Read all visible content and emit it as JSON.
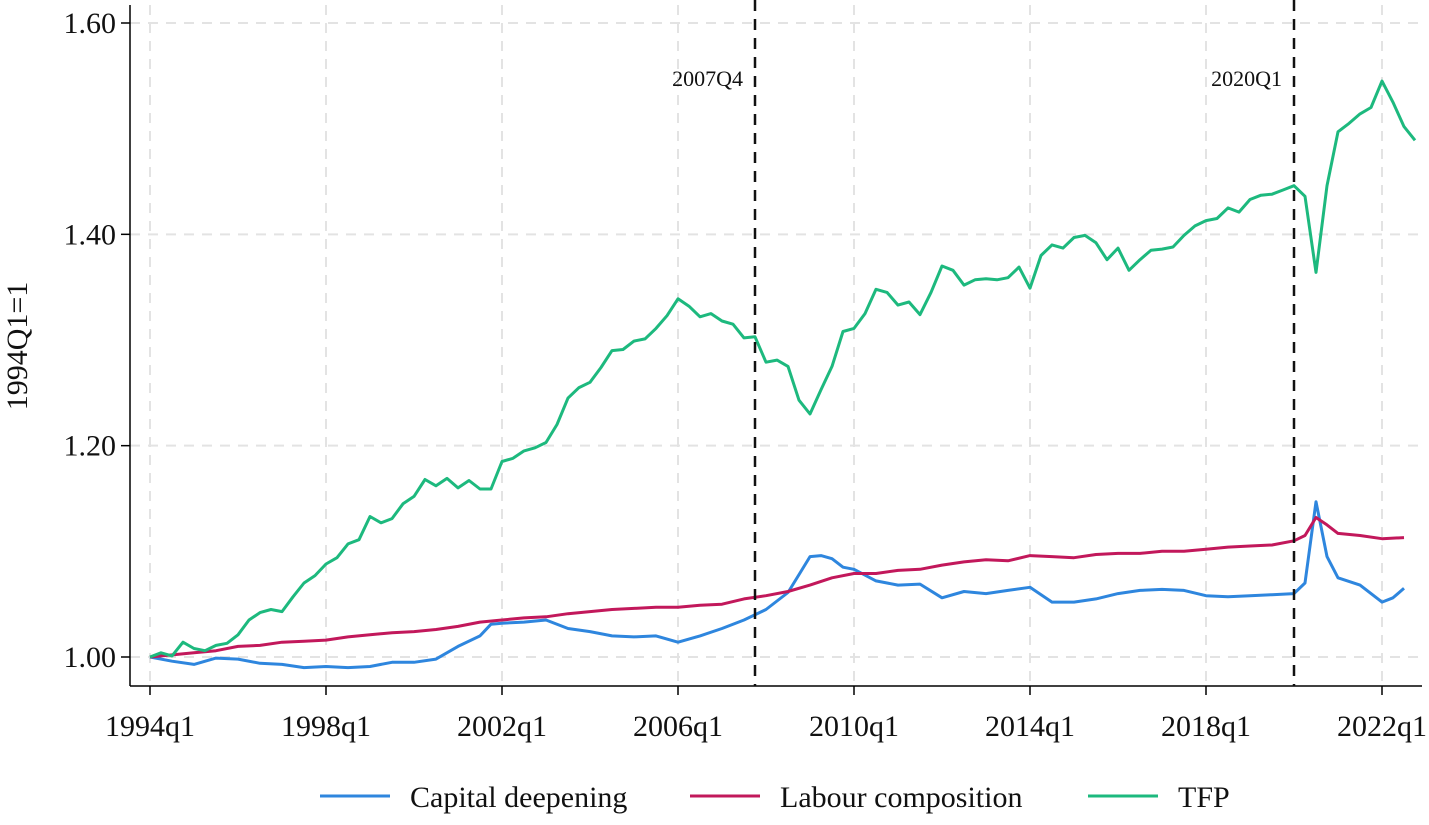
{
  "chart_data": {
    "type": "line",
    "ylabel": "1994Q1=1",
    "xlabel": "",
    "ylim": [
      0.97,
      1.62
    ],
    "xlim": [
      1993.75,
      2022.75
    ],
    "yticks": [
      {
        "value": 1.0,
        "label": "1.00"
      },
      {
        "value": 1.2,
        "label": "1.20"
      },
      {
        "value": 1.4,
        "label": "1.40"
      },
      {
        "value": 1.6,
        "label": "1.60"
      }
    ],
    "xticks": [
      {
        "value": 1994,
        "label": "1994q1"
      },
      {
        "value": 1998,
        "label": "1998q1"
      },
      {
        "value": 2002,
        "label": "2002q1"
      },
      {
        "value": 2006,
        "label": "2006q1"
      },
      {
        "value": 2010,
        "label": "2010q1"
      },
      {
        "value": 2014,
        "label": "2014q1"
      },
      {
        "value": 2018,
        "label": "2018q1"
      },
      {
        "value": 2022,
        "label": "2022q1"
      }
    ],
    "grid": true,
    "legend_position": "bottom",
    "vlines": [
      {
        "x": 2007.75,
        "label": "2007Q4"
      },
      {
        "x": 2020.0,
        "label": "2020Q1"
      }
    ],
    "series": [
      {
        "name": "Capital deepening",
        "color": "#2E86DE",
        "points": [
          [
            1994.0,
            1.0
          ],
          [
            1994.5,
            0.996
          ],
          [
            1995.0,
            0.993
          ],
          [
            1995.5,
            0.999
          ],
          [
            1996.0,
            0.998
          ],
          [
            1996.5,
            0.994
          ],
          [
            1997.0,
            0.993
          ],
          [
            1997.5,
            0.99
          ],
          [
            1998.0,
            0.991
          ],
          [
            1998.5,
            0.99
          ],
          [
            1999.0,
            0.991
          ],
          [
            1999.5,
            0.995
          ],
          [
            2000.0,
            0.995
          ],
          [
            2000.5,
            0.998
          ],
          [
            2001.0,
            1.01
          ],
          [
            2001.5,
            1.02
          ],
          [
            2001.75,
            1.031
          ],
          [
            2002.0,
            1.032
          ],
          [
            2002.5,
            1.033
          ],
          [
            2003.0,
            1.035
          ],
          [
            2003.5,
            1.027
          ],
          [
            2004.0,
            1.024
          ],
          [
            2004.5,
            1.02
          ],
          [
            2005.0,
            1.019
          ],
          [
            2005.5,
            1.02
          ],
          [
            2006.0,
            1.014
          ],
          [
            2006.5,
            1.02
          ],
          [
            2007.0,
            1.027
          ],
          [
            2007.5,
            1.035
          ],
          [
            2008.0,
            1.045
          ],
          [
            2008.25,
            1.053
          ],
          [
            2008.5,
            1.061
          ],
          [
            2008.75,
            1.078
          ],
          [
            2009.0,
            1.095
          ],
          [
            2009.25,
            1.096
          ],
          [
            2009.5,
            1.093
          ],
          [
            2009.75,
            1.085
          ],
          [
            2010.0,
            1.083
          ],
          [
            2010.5,
            1.072
          ],
          [
            2011.0,
            1.068
          ],
          [
            2011.5,
            1.069
          ],
          [
            2012.0,
            1.056
          ],
          [
            2012.5,
            1.062
          ],
          [
            2013.0,
            1.06
          ],
          [
            2013.5,
            1.063
          ],
          [
            2014.0,
            1.066
          ],
          [
            2014.5,
            1.052
          ],
          [
            2015.0,
            1.052
          ],
          [
            2015.5,
            1.055
          ],
          [
            2016.0,
            1.06
          ],
          [
            2016.5,
            1.063
          ],
          [
            2017.0,
            1.064
          ],
          [
            2017.5,
            1.063
          ],
          [
            2018.0,
            1.058
          ],
          [
            2018.5,
            1.057
          ],
          [
            2019.0,
            1.058
          ],
          [
            2019.5,
            1.059
          ],
          [
            2020.0,
            1.06
          ],
          [
            2020.25,
            1.07
          ],
          [
            2020.5,
            1.147
          ],
          [
            2020.75,
            1.095
          ],
          [
            2021.0,
            1.075
          ],
          [
            2021.5,
            1.068
          ],
          [
            2022.0,
            1.052
          ],
          [
            2022.25,
            1.056
          ],
          [
            2022.5,
            1.065
          ]
        ]
      },
      {
        "name": "Labour composition",
        "color": "#C2185B",
        "points": [
          [
            1994.0,
            1.0
          ],
          [
            1994.5,
            1.002
          ],
          [
            1995.0,
            1.004
          ],
          [
            1995.5,
            1.006
          ],
          [
            1996.0,
            1.01
          ],
          [
            1996.5,
            1.011
          ],
          [
            1997.0,
            1.014
          ],
          [
            1997.5,
            1.015
          ],
          [
            1998.0,
            1.016
          ],
          [
            1998.5,
            1.019
          ],
          [
            1999.0,
            1.021
          ],
          [
            1999.5,
            1.023
          ],
          [
            2000.0,
            1.024
          ],
          [
            2000.5,
            1.026
          ],
          [
            2001.0,
            1.029
          ],
          [
            2001.5,
            1.033
          ],
          [
            2002.0,
            1.035
          ],
          [
            2002.5,
            1.037
          ],
          [
            2003.0,
            1.038
          ],
          [
            2003.5,
            1.041
          ],
          [
            2004.0,
            1.043
          ],
          [
            2004.5,
            1.045
          ],
          [
            2005.0,
            1.046
          ],
          [
            2005.5,
            1.047
          ],
          [
            2006.0,
            1.047
          ],
          [
            2006.5,
            1.049
          ],
          [
            2007.0,
            1.05
          ],
          [
            2007.5,
            1.055
          ],
          [
            2008.0,
            1.058
          ],
          [
            2008.5,
            1.062
          ],
          [
            2009.0,
            1.068
          ],
          [
            2009.5,
            1.075
          ],
          [
            2010.0,
            1.079
          ],
          [
            2010.5,
            1.079
          ],
          [
            2011.0,
            1.082
          ],
          [
            2011.5,
            1.083
          ],
          [
            2012.0,
            1.087
          ],
          [
            2012.5,
            1.09
          ],
          [
            2013.0,
            1.092
          ],
          [
            2013.5,
            1.091
          ],
          [
            2014.0,
            1.096
          ],
          [
            2014.5,
            1.095
          ],
          [
            2015.0,
            1.094
          ],
          [
            2015.5,
            1.097
          ],
          [
            2016.0,
            1.098
          ],
          [
            2016.5,
            1.098
          ],
          [
            2017.0,
            1.1
          ],
          [
            2017.5,
            1.1
          ],
          [
            2018.0,
            1.102
          ],
          [
            2018.5,
            1.104
          ],
          [
            2019.0,
            1.105
          ],
          [
            2019.5,
            1.106
          ],
          [
            2020.0,
            1.11
          ],
          [
            2020.25,
            1.115
          ],
          [
            2020.5,
            1.132
          ],
          [
            2020.75,
            1.125
          ],
          [
            2021.0,
            1.117
          ],
          [
            2021.5,
            1.115
          ],
          [
            2022.0,
            1.112
          ],
          [
            2022.5,
            1.113
          ]
        ]
      },
      {
        "name": "TFP",
        "color": "#1DB97E",
        "points": [
          [
            1994.0,
            1.0
          ],
          [
            1994.25,
            1.004
          ],
          [
            1994.5,
            1.001
          ],
          [
            1994.75,
            1.014
          ],
          [
            1995.0,
            1.008
          ],
          [
            1995.25,
            1.006
          ],
          [
            1995.5,
            1.011
          ],
          [
            1995.75,
            1.013
          ],
          [
            1996.0,
            1.021
          ],
          [
            1996.25,
            1.035
          ],
          [
            1996.5,
            1.042
          ],
          [
            1996.75,
            1.045
          ],
          [
            1997.0,
            1.043
          ],
          [
            1997.25,
            1.057
          ],
          [
            1997.5,
            1.07
          ],
          [
            1997.75,
            1.077
          ],
          [
            1998.0,
            1.088
          ],
          [
            1998.25,
            1.094
          ],
          [
            1998.5,
            1.107
          ],
          [
            1998.75,
            1.111
          ],
          [
            1999.0,
            1.133
          ],
          [
            1999.25,
            1.127
          ],
          [
            1999.5,
            1.131
          ],
          [
            1999.75,
            1.145
          ],
          [
            2000.0,
            1.152
          ],
          [
            2000.25,
            1.168
          ],
          [
            2000.5,
            1.162
          ],
          [
            2000.75,
            1.169
          ],
          [
            2001.0,
            1.16
          ],
          [
            2001.25,
            1.167
          ],
          [
            2001.5,
            1.159
          ],
          [
            2001.75,
            1.159
          ],
          [
            2002.0,
            1.185
          ],
          [
            2002.25,
            1.188
          ],
          [
            2002.5,
            1.195
          ],
          [
            2002.75,
            1.198
          ],
          [
            2003.0,
            1.203
          ],
          [
            2003.25,
            1.22
          ],
          [
            2003.5,
            1.245
          ],
          [
            2003.75,
            1.255
          ],
          [
            2004.0,
            1.26
          ],
          [
            2004.25,
            1.274
          ],
          [
            2004.5,
            1.29
          ],
          [
            2004.75,
            1.291
          ],
          [
            2005.0,
            1.299
          ],
          [
            2005.25,
            1.301
          ],
          [
            2005.5,
            1.311
          ],
          [
            2005.75,
            1.323
          ],
          [
            2006.0,
            1.339
          ],
          [
            2006.25,
            1.332
          ],
          [
            2006.5,
            1.322
          ],
          [
            2006.75,
            1.325
          ],
          [
            2007.0,
            1.318
          ],
          [
            2007.25,
            1.315
          ],
          [
            2007.5,
            1.302
          ],
          [
            2007.75,
            1.303
          ],
          [
            2008.0,
            1.279
          ],
          [
            2008.25,
            1.281
          ],
          [
            2008.5,
            1.275
          ],
          [
            2008.75,
            1.243
          ],
          [
            2009.0,
            1.23
          ],
          [
            2009.25,
            1.253
          ],
          [
            2009.5,
            1.275
          ],
          [
            2009.75,
            1.308
          ],
          [
            2010.0,
            1.311
          ],
          [
            2010.25,
            1.325
          ],
          [
            2010.5,
            1.348
          ],
          [
            2010.75,
            1.345
          ],
          [
            2011.0,
            1.333
          ],
          [
            2011.25,
            1.336
          ],
          [
            2011.5,
            1.324
          ],
          [
            2011.75,
            1.345
          ],
          [
            2012.0,
            1.37
          ],
          [
            2012.25,
            1.366
          ],
          [
            2012.5,
            1.352
          ],
          [
            2012.75,
            1.357
          ],
          [
            2013.0,
            1.358
          ],
          [
            2013.25,
            1.357
          ],
          [
            2013.5,
            1.359
          ],
          [
            2013.75,
            1.369
          ],
          [
            2014.0,
            1.349
          ],
          [
            2014.25,
            1.38
          ],
          [
            2014.5,
            1.39
          ],
          [
            2014.75,
            1.387
          ],
          [
            2015.0,
            1.397
          ],
          [
            2015.25,
            1.399
          ],
          [
            2015.5,
            1.392
          ],
          [
            2015.75,
            1.376
          ],
          [
            2016.0,
            1.387
          ],
          [
            2016.25,
            1.366
          ],
          [
            2016.5,
            1.376
          ],
          [
            2016.75,
            1.385
          ],
          [
            2017.0,
            1.386
          ],
          [
            2017.25,
            1.388
          ],
          [
            2017.5,
            1.399
          ],
          [
            2017.75,
            1.408
          ],
          [
            2018.0,
            1.413
          ],
          [
            2018.25,
            1.415
          ],
          [
            2018.5,
            1.425
          ],
          [
            2018.75,
            1.421
          ],
          [
            2019.0,
            1.433
          ],
          [
            2019.25,
            1.437
          ],
          [
            2019.5,
            1.438
          ],
          [
            2019.75,
            1.442
          ],
          [
            2020.0,
            1.446
          ],
          [
            2020.25,
            1.436
          ],
          [
            2020.5,
            1.364
          ],
          [
            2020.75,
            1.446
          ],
          [
            2021.0,
            1.497
          ],
          [
            2021.25,
            1.505
          ],
          [
            2021.5,
            1.514
          ],
          [
            2021.75,
            1.52
          ],
          [
            2022.0,
            1.545
          ],
          [
            2022.25,
            1.525
          ],
          [
            2022.5,
            1.502
          ],
          [
            2022.75,
            1.489
          ]
        ]
      }
    ]
  }
}
